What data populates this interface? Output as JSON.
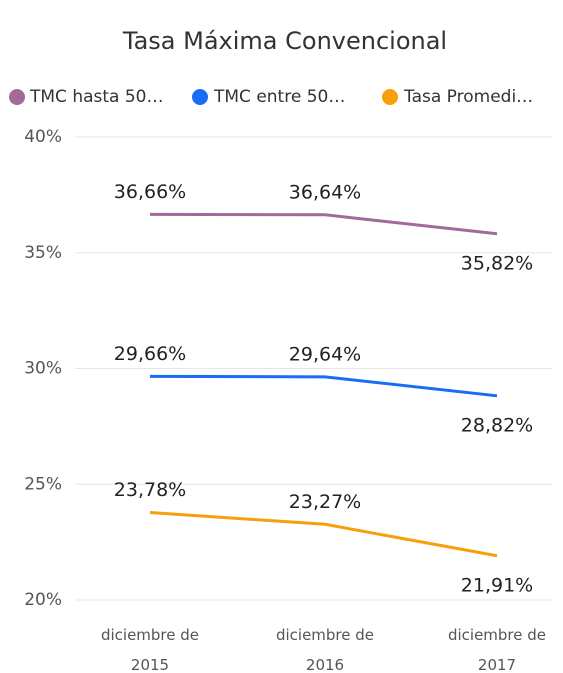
{
  "chart_data": {
    "type": "line",
    "title": "Tasa Máxima Convencional",
    "categories": [
      "diciembre de 2015",
      "diciembre de 2016",
      "diciembre de 2017"
    ],
    "series": [
      {
        "name": "TMC hasta 50…",
        "color": "#a4699b",
        "values": [
          36.66,
          36.64,
          35.82
        ],
        "value_labels": [
          "36,66%",
          "36,64%",
          "35,82%"
        ]
      },
      {
        "name": "TMC entre 50…",
        "color": "#1a6cf5",
        "values": [
          29.66,
          29.64,
          28.82
        ],
        "value_labels": [
          "29,66%",
          "29,64%",
          "28,82%"
        ]
      },
      {
        "name": "Tasa Promedi…",
        "color": "#f7a00c",
        "values": [
          23.78,
          23.27,
          21.91
        ],
        "value_labels": [
          "23,78%",
          "23,27%",
          "21,91%"
        ]
      }
    ],
    "ylim": [
      20,
      40
    ],
    "yticks": [
      {
        "value": 20,
        "label": "20%"
      },
      {
        "value": 25,
        "label": "25%"
      },
      {
        "value": 30,
        "label": "30%"
      },
      {
        "value": 35,
        "label": "35%"
      },
      {
        "value": 40,
        "label": "40%"
      }
    ],
    "grid": true
  }
}
